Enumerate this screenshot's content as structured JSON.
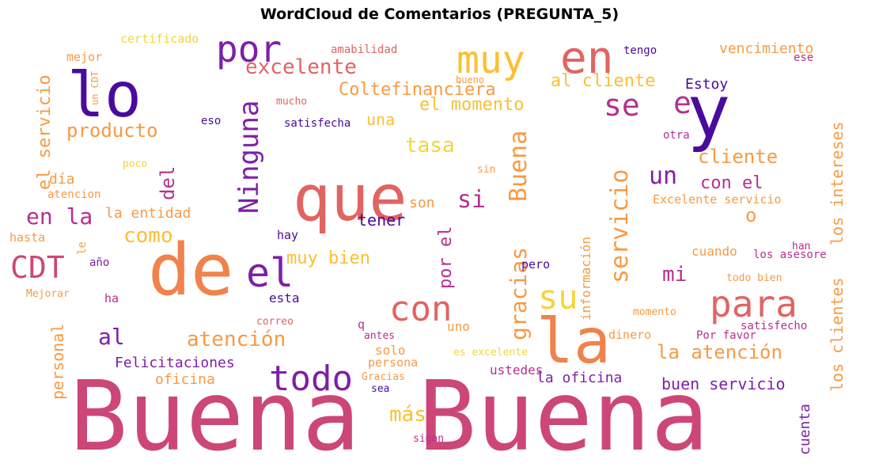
{
  "title": "WordCloud de Comentarios (PREGUNTA_5)",
  "colors": {
    "purple_dark": "#4a0a9e",
    "purple": "#7e1fa8",
    "magenta": "#b5308f",
    "pink": "#cc4778",
    "coral": "#e16462",
    "orange": "#f0824c",
    "orange_light": "#f89a43",
    "yellow": "#fbbf32",
    "yellow_light": "#f4d43e"
  },
  "words": [
    {
      "text": "Buena Buena",
      "color": "pink"
    },
    {
      "text": "que",
      "color": "coral"
    },
    {
      "text": "de",
      "color": "orange"
    },
    {
      "text": "la",
      "color": "orange"
    },
    {
      "text": "lo",
      "color": "purple_dark"
    },
    {
      "text": "y",
      "color": "purple_dark"
    },
    {
      "text": "en",
      "color": "coral"
    },
    {
      "text": "muy",
      "color": "yellow"
    },
    {
      "text": "por",
      "color": "purple"
    },
    {
      "text": "el",
      "color": "purple"
    },
    {
      "text": "con",
      "color": "coral"
    },
    {
      "text": "todo",
      "color": "purple"
    },
    {
      "text": "para",
      "color": "coral"
    },
    {
      "text": "su",
      "color": "yellow_light"
    },
    {
      "text": "se",
      "color": "magenta"
    },
    {
      "text": "e",
      "color": "magenta"
    },
    {
      "text": "CDT",
      "color": "pink"
    },
    {
      "text": "excelente",
      "color": "coral"
    },
    {
      "text": "Ninguna",
      "color": "purple"
    },
    {
      "text": "Buena",
      "color": "orange_light"
    },
    {
      "text": "servicio",
      "color": "orange_light"
    },
    {
      "text": "gracias",
      "color": "orange_light"
    },
    {
      "text": "el servicio",
      "color": "orange_light"
    },
    {
      "text": "del",
      "color": "magenta"
    },
    {
      "text": "producto",
      "color": "orange_light"
    },
    {
      "text": "Coltefinanciera",
      "color": "orange_light"
    },
    {
      "text": "al cliente",
      "color": "yellow"
    },
    {
      "text": "el momento",
      "color": "yellow"
    },
    {
      "text": "tasa",
      "color": "yellow_light"
    },
    {
      "text": "una",
      "color": "yellow"
    },
    {
      "text": "cliente",
      "color": "orange_light"
    },
    {
      "text": "con el",
      "color": "magenta"
    },
    {
      "text": "un",
      "color": "purple"
    },
    {
      "text": "si",
      "color": "magenta"
    },
    {
      "text": "en la",
      "color": "magenta"
    },
    {
      "text": "como",
      "color": "yellow"
    },
    {
      "text": "o",
      "color": "orange_light"
    },
    {
      "text": "mi",
      "color": "magenta"
    },
    {
      "text": "los intereses",
      "color": "orange_light"
    },
    {
      "text": "los clientes",
      "color": "orange_light"
    },
    {
      "text": "atención",
      "color": "orange_light"
    },
    {
      "text": "la atención",
      "color": "orange_light"
    },
    {
      "text": "buen servicio",
      "color": "purple"
    },
    {
      "text": "muy bien",
      "color": "yellow"
    },
    {
      "text": "por el",
      "color": "magenta"
    },
    {
      "text": "más",
      "color": "yellow"
    },
    {
      "text": "al",
      "color": "purple"
    },
    {
      "text": "personal",
      "color": "orange_light"
    },
    {
      "text": "Felicitaciones",
      "color": "purple"
    },
    {
      "text": "oficina",
      "color": "orange_light"
    },
    {
      "text": "la oficina",
      "color": "purple"
    },
    {
      "text": "información",
      "color": "orange_light"
    },
    {
      "text": "la entidad",
      "color": "orange_light"
    },
    {
      "text": "día",
      "color": "orange_light"
    },
    {
      "text": "tener",
      "color": "purple_dark"
    },
    {
      "text": "son",
      "color": "orange_light"
    },
    {
      "text": "Estoy",
      "color": "purple_dark"
    },
    {
      "text": "vencimiento",
      "color": "orange_light"
    },
    {
      "text": "certificado",
      "color": "yellow_light"
    },
    {
      "text": "mejor",
      "color": "orange_light"
    },
    {
      "text": "amabilidad",
      "color": "coral"
    },
    {
      "text": "tengo",
      "color": "purple_dark"
    },
    {
      "text": "ese",
      "color": "magenta"
    },
    {
      "text": "un CDT",
      "color": "orange_light"
    },
    {
      "text": "bueno",
      "color": "orange_light"
    },
    {
      "text": "mucho",
      "color": "coral"
    },
    {
      "text": "eso",
      "color": "purple_dark"
    },
    {
      "text": "satisfecha",
      "color": "purple_dark"
    },
    {
      "text": "otra",
      "color": "magenta"
    },
    {
      "text": "poco",
      "color": "yellow_light"
    },
    {
      "text": "sin",
      "color": "orange_light"
    },
    {
      "text": "atencion",
      "color": "orange_light"
    },
    {
      "text": "Excelente servicio",
      "color": "orange_light"
    },
    {
      "text": "hasta",
      "color": "orange_light"
    },
    {
      "text": "le",
      "color": "orange_light"
    },
    {
      "text": "hay",
      "color": "purple_dark"
    },
    {
      "text": "año",
      "color": "purple"
    },
    {
      "text": "pero",
      "color": "purple_dark"
    },
    {
      "text": "cuando",
      "color": "orange_light"
    },
    {
      "text": "los asesore",
      "color": "magenta"
    },
    {
      "text": "han",
      "color": "magenta"
    },
    {
      "text": "todo bien",
      "color": "orange_light"
    },
    {
      "text": "Mejorar",
      "color": "orange_light"
    },
    {
      "text": "ha",
      "color": "magenta"
    },
    {
      "text": "esta",
      "color": "purple_dark"
    },
    {
      "text": "momento",
      "color": "orange_light"
    },
    {
      "text": "correo",
      "color": "coral"
    },
    {
      "text": "q",
      "color": "magenta"
    },
    {
      "text": "uno",
      "color": "orange_light"
    },
    {
      "text": "antes",
      "color": "magenta"
    },
    {
      "text": "dinero",
      "color": "orange_light"
    },
    {
      "text": "Por favor",
      "color": "magenta"
    },
    {
      "text": "satisfecho",
      "color": "magenta"
    },
    {
      "text": "solo",
      "color": "orange_light"
    },
    {
      "text": "es excelente",
      "color": "yellow_light"
    },
    {
      "text": "persona",
      "color": "orange_light"
    },
    {
      "text": "ustedes",
      "color": "magenta"
    },
    {
      "text": "Gracias",
      "color": "orange_light"
    },
    {
      "text": "sea",
      "color": "purple_dark"
    },
    {
      "text": "cuenta",
      "color": "purple"
    },
    {
      "text": "sigan",
      "color": "magenta"
    }
  ]
}
